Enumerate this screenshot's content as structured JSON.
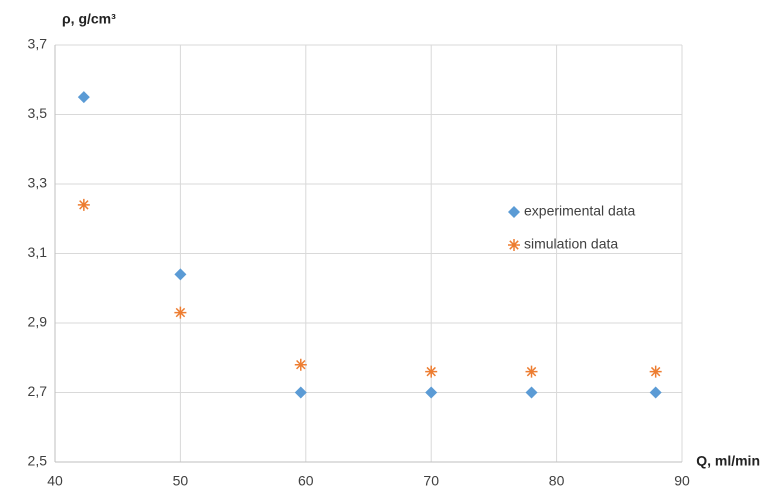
{
  "chart_data": {
    "type": "scatter",
    "x_label": "Q, ml/min",
    "y_label": "ρ, g/cm³",
    "xlim": [
      40,
      90
    ],
    "xticks": [
      40,
      50,
      60,
      70,
      80,
      90
    ],
    "ylim": [
      2.5,
      3.7
    ],
    "yticks": [
      {
        "value": 2.5,
        "label": "2,5"
      },
      {
        "value": 2.7,
        "label": "2,7"
      },
      {
        "value": 2.9,
        "label": "2,9"
      },
      {
        "value": 3.1,
        "label": "3,1"
      },
      {
        "value": 3.3,
        "label": "3,3"
      },
      {
        "value": 3.5,
        "label": "3,5"
      },
      {
        "value": 3.7,
        "label": "3,7"
      }
    ],
    "grid": true,
    "legend": "right",
    "series": [
      {
        "name": "experimental data",
        "color": "#5b9bd5",
        "marker": "diamond",
        "x": [
          42.3,
          50,
          59.6,
          70,
          78,
          87.9
        ],
        "values": [
          3.55,
          3.04,
          2.7,
          2.7,
          2.7,
          2.7
        ]
      },
      {
        "name": "simulation data",
        "color": "#ed7d31",
        "marker": "star",
        "x": [
          42.3,
          50,
          59.6,
          70,
          78,
          87.9
        ],
        "values": [
          3.24,
          2.93,
          2.78,
          2.76,
          2.76,
          2.76
        ]
      }
    ]
  }
}
